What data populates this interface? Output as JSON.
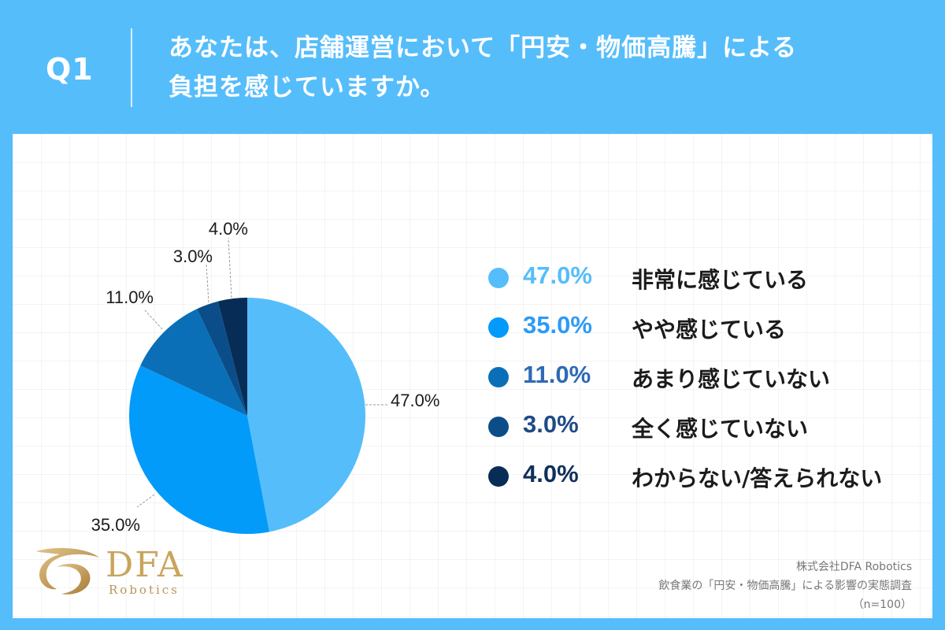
{
  "header": {
    "q_label": "Q1",
    "title_line1": "あなたは、店舗運営において「円安・物価高騰」による",
    "title_line2": "負担を感じていますか。"
  },
  "chart_data": {
    "type": "pie",
    "unit": "%",
    "slices": [
      {
        "label": "非常に感じている",
        "value": 47.0,
        "display": "47.0%",
        "color": "#56bdfb"
      },
      {
        "label": "やや感じている",
        "value": 35.0,
        "display": "35.0%",
        "color": "#039bf9"
      },
      {
        "label": "あまり感じていない",
        "value": 11.0,
        "display": "11.0%",
        "color": "#0a6fb6"
      },
      {
        "label": "全く感じていない",
        "value": 3.0,
        "display": "3.0%",
        "color": "#0b4d88"
      },
      {
        "label": "わからない/答えられない",
        "value": 4.0,
        "display": "4.0%",
        "color": "#072d56"
      }
    ],
    "start_angle": "top",
    "direction": "clockwise",
    "legend_position": "right",
    "legend_text_colors": [
      "#56bdfb",
      "#2e9af6",
      "#2e6ab5",
      "#1e4b86",
      "#10305a"
    ]
  },
  "logo": {
    "text": "DFA",
    "subtext": "Robotics",
    "color": "#c9a45c"
  },
  "source": {
    "line1": "株式会社DFA Robotics",
    "line2": "飲食業の「円安・物価高騰」による影響の実態調査",
    "line3": "（n=100）"
  }
}
